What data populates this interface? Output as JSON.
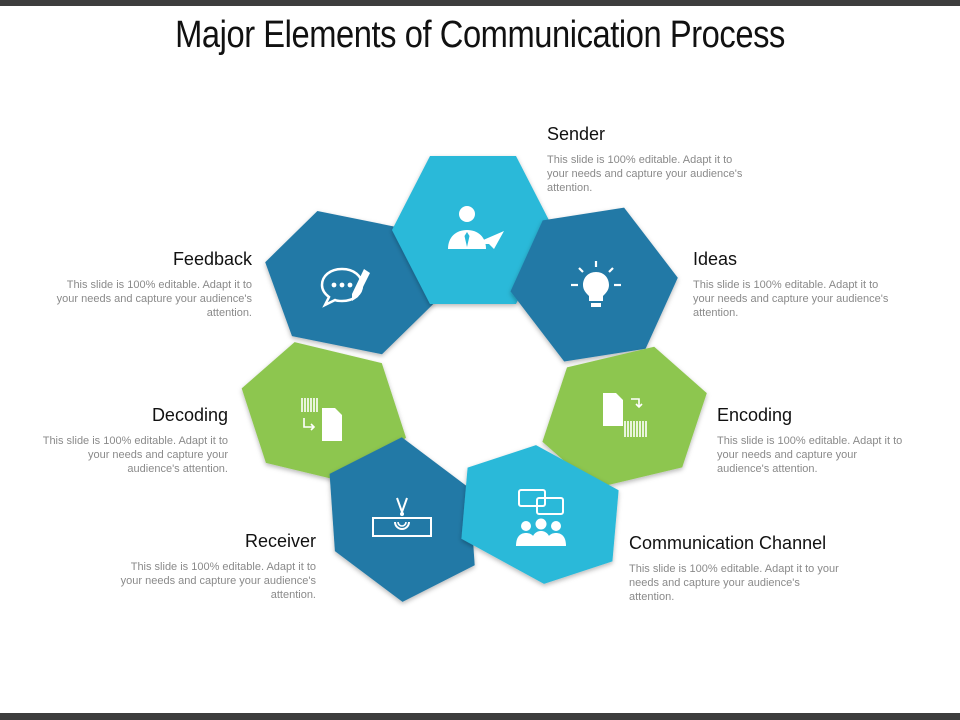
{
  "title": "Major Elements of Communication Process",
  "colors": {
    "light_blue": "#29b9d9",
    "dark_blue": "#2479a6",
    "green": "#8dc64f"
  },
  "elements": [
    {
      "key": "sender",
      "heading": "Sender",
      "text": "This slide is 100% editable. Adapt it to your needs and capture your audience's attention.",
      "icon": "businessman-paper-plane-icon",
      "color": "light_blue"
    },
    {
      "key": "ideas",
      "heading": "Ideas",
      "text": "This slide is 100% editable. Adapt it to your needs and capture your audience's attention.",
      "icon": "lightbulb-icon",
      "color": "dark_blue"
    },
    {
      "key": "encoding",
      "heading": "Encoding",
      "text": "This slide is 100% editable. Adapt it to your needs and capture your audience's attention.",
      "icon": "document-to-barcode-icon",
      "color": "green"
    },
    {
      "key": "channel",
      "heading": "Communication Channel",
      "text": "This slide is 100% editable. Adapt it to your needs and capture your audience's attention.",
      "icon": "chat-group-icon",
      "color": "light_blue"
    },
    {
      "key": "receiver",
      "heading": "Receiver",
      "text": "This slide is 100% editable. Adapt it to your needs and capture your audience's attention.",
      "icon": "antenna-receiver-icon",
      "color": "dark_blue"
    },
    {
      "key": "decoding",
      "heading": "Decoding",
      "text": "This slide is 100% editable. Adapt it to your needs and capture your audience's attention.",
      "icon": "barcode-to-document-icon",
      "color": "green"
    },
    {
      "key": "feedback",
      "heading": "Feedback",
      "text": "This slide is 100% editable. Adapt it to your needs and capture your audience's attention.",
      "icon": "feedback-chat-pencil-icon",
      "color": "dark_blue"
    }
  ]
}
